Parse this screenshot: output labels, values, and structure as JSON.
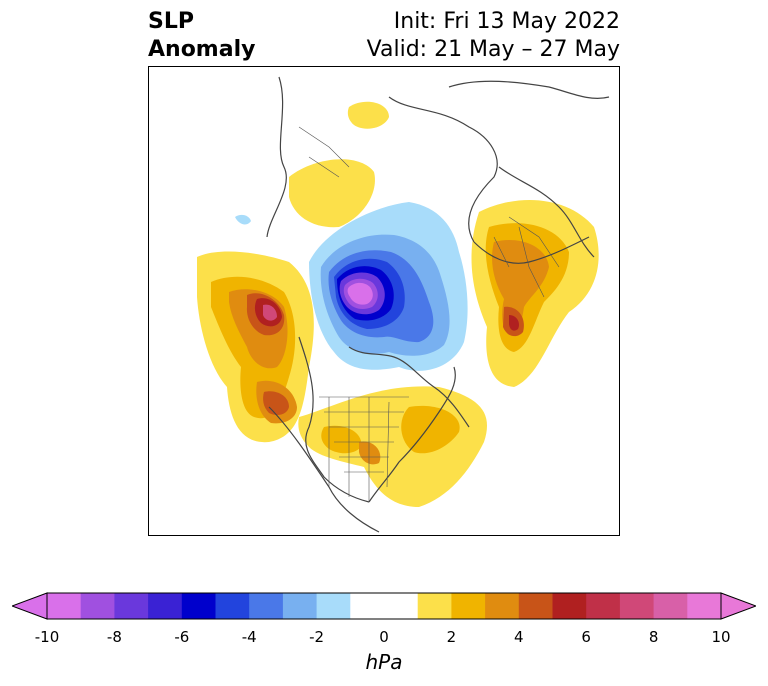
{
  "title": {
    "left_line1": "SLP",
    "left_line2": "Anomaly",
    "right_line1": "Init: Fri 13 May 2022",
    "right_line2": "Valid: 21 May – 27 May"
  },
  "colorbar": {
    "unit": "hPa",
    "ticks": [
      "-10",
      "-8",
      "-6",
      "-4",
      "-2",
      "0",
      "2",
      "4",
      "6",
      "8",
      "10"
    ],
    "colors": [
      "#d970ea",
      "#a050e0",
      "#6a38dc",
      "#3a22d4",
      "#0000cc",
      "#2244dd",
      "#4a78e8",
      "#78b0f0",
      "#a8dcfa",
      "#ffffff",
      "#ffffff",
      "#fce04a",
      "#f0b400",
      "#e08c10",
      "#c85418",
      "#b02020",
      "#c03048",
      "#d04878",
      "#d860a8",
      "#e878d8"
    ],
    "extend_min_color": "#d970ea",
    "extend_max_color": "#e878d8"
  },
  "map": {
    "projection": "north-polar-stereographic",
    "field": "sea-level-pressure-anomaly"
  }
}
